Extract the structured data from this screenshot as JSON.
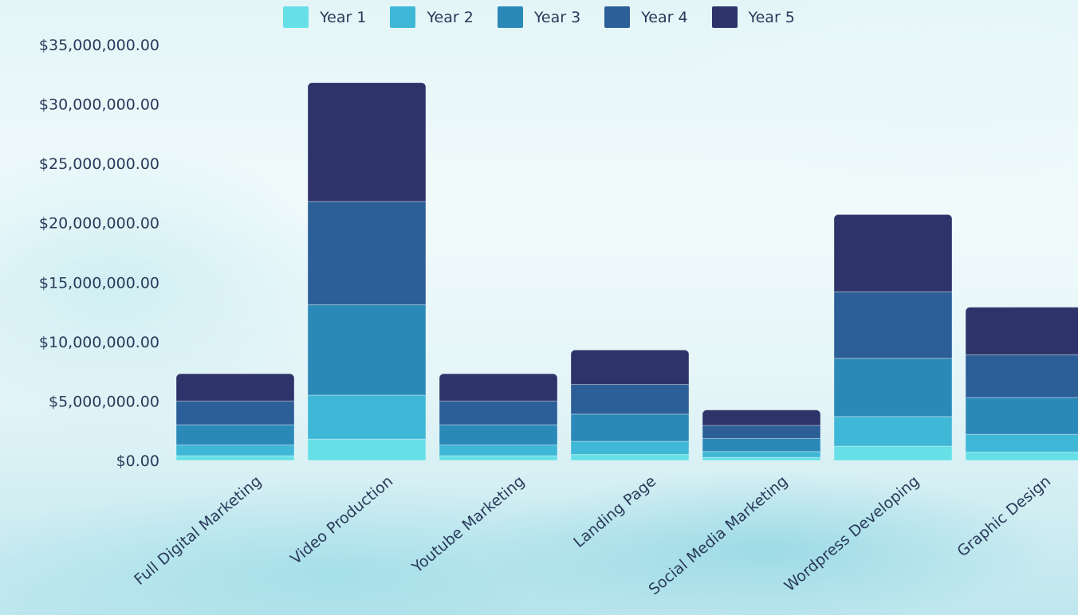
{
  "colors": {
    "year1": "#66e0e6",
    "year2": "#3fb7d6",
    "year3": "#2b89b8",
    "year4": "#2c5f98",
    "year5": "#2e3469",
    "axis_text": "#2a3a5a"
  },
  "chart_data": {
    "type": "bar",
    "stacked": true,
    "legend_position": "top-center",
    "grid": false,
    "title": "",
    "xlabel": "",
    "ylabel": "",
    "ylim": [
      0,
      35000000
    ],
    "y_ticks": [
      0,
      5000000,
      10000000,
      15000000,
      20000000,
      25000000,
      30000000,
      35000000
    ],
    "y_tick_labels": [
      "$0.00",
      "$5,000,000.00",
      "$10,000,000.00",
      "$15,000,000.00",
      "$20,000,000.00",
      "$25,000,000.00",
      "$30,000,000.00",
      "$35,000,000.00"
    ],
    "categories": [
      "Full Digital Marketing",
      "Video Production",
      "Youtube Marketing",
      "Landing Page",
      "Social Media Marketing",
      "Wordpress Developing",
      "Graphic Design"
    ],
    "series": [
      {
        "name": "Year 1",
        "color_key": "year1",
        "values": [
          400000,
          1800000,
          400000,
          500000,
          250000,
          1200000,
          700000
        ]
      },
      {
        "name": "Year 2",
        "color_key": "year2",
        "values": [
          900000,
          3700000,
          900000,
          1100000,
          500000,
          2500000,
          1500000
        ]
      },
      {
        "name": "Year 3",
        "color_key": "year3",
        "values": [
          1700000,
          7600000,
          1700000,
          2300000,
          1100000,
          4900000,
          3100000
        ]
      },
      {
        "name": "Year 4",
        "color_key": "year4",
        "values": [
          2000000,
          8700000,
          2000000,
          2500000,
          1100000,
          5600000,
          3600000
        ]
      },
      {
        "name": "Year 5",
        "color_key": "year5",
        "values": [
          2300000,
          10000000,
          2300000,
          2900000,
          1300000,
          6500000,
          4000000
        ]
      }
    ]
  }
}
